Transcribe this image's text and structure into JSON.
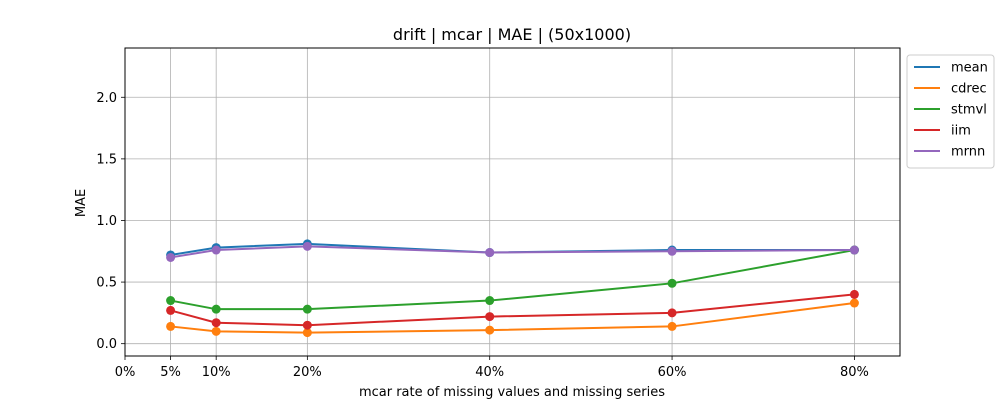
{
  "chart_data": {
    "type": "line",
    "title": "drift | mcar | MAE | (50x1000)",
    "xlabel": "mcar rate of missing values and missing series",
    "ylabel": "MAE",
    "x": [
      5,
      10,
      20,
      40,
      60,
      80
    ],
    "xticks": [
      0,
      5,
      10,
      20,
      40,
      60,
      80
    ],
    "xtick_labels": [
      "0%",
      "5%",
      "10%",
      "20%",
      "40%",
      "60%",
      "80%"
    ],
    "xlim": [
      0,
      85
    ],
    "yticks": [
      0.0,
      0.5,
      1.0,
      1.5,
      2.0
    ],
    "ytick_labels": [
      "0.0",
      "0.5",
      "1.0",
      "1.5",
      "2.0"
    ],
    "ylim": [
      -0.1,
      2.4
    ],
    "grid": true,
    "legend_position": "outside-top-right",
    "series": [
      {
        "name": "mean",
        "color": "#1f77b4",
        "values": [
          0.72,
          0.78,
          0.81,
          0.74,
          0.76,
          0.76
        ]
      },
      {
        "name": "cdrec",
        "color": "#ff7f0e",
        "values": [
          0.14,
          0.1,
          0.09,
          0.11,
          0.14,
          0.33
        ]
      },
      {
        "name": "stmvl",
        "color": "#2ca02c",
        "values": [
          0.35,
          0.28,
          0.28,
          0.35,
          0.49,
          0.76
        ]
      },
      {
        "name": "iim",
        "color": "#d62728",
        "values": [
          0.27,
          0.17,
          0.15,
          0.22,
          0.25,
          0.4
        ]
      },
      {
        "name": "mrnn",
        "color": "#9467bd",
        "values": [
          0.7,
          0.76,
          0.79,
          0.74,
          0.75,
          0.76
        ]
      }
    ]
  }
}
